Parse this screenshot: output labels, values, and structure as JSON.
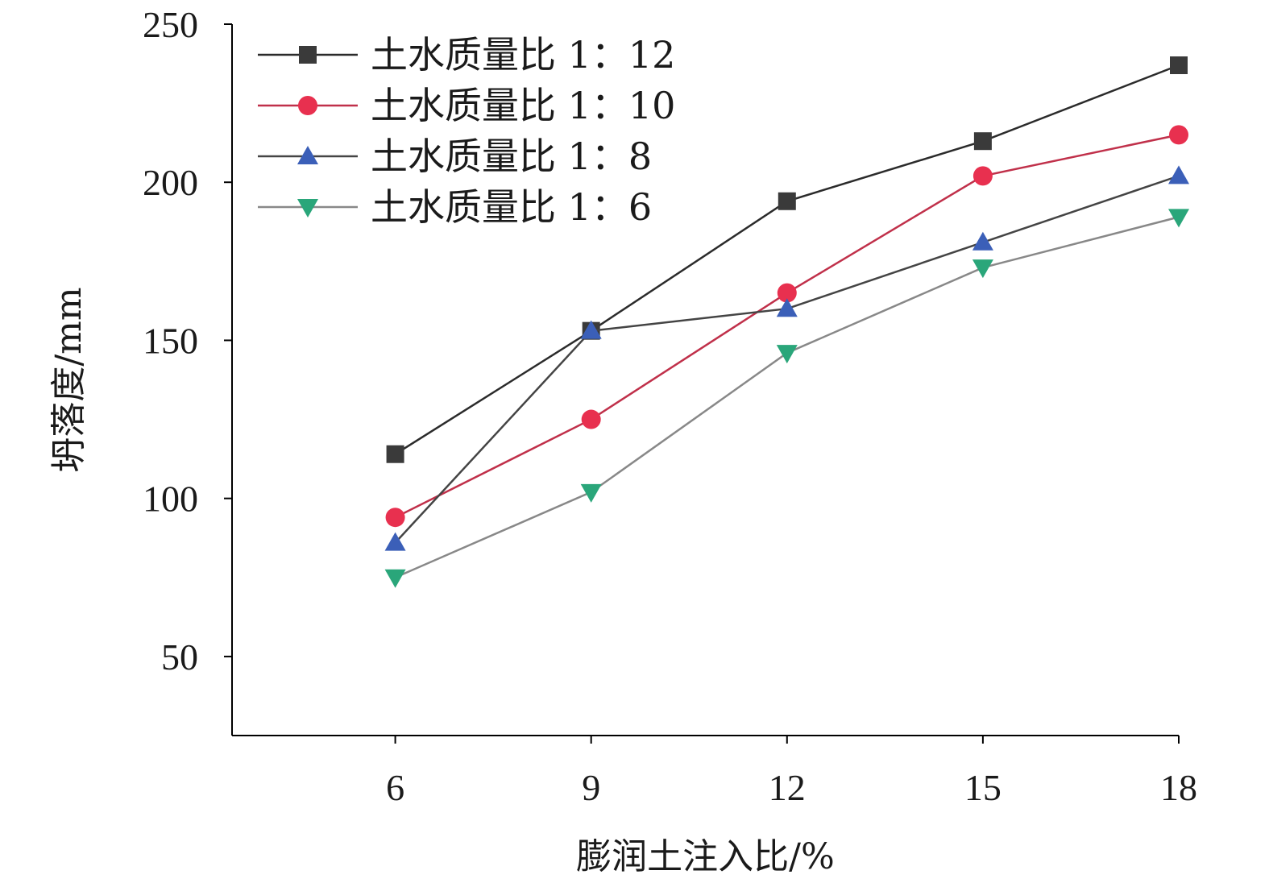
{
  "chart_data": {
    "type": "line",
    "xlabel": "膨润土注入比/%",
    "ylabel": "坍落度/mm",
    "x": [
      6,
      9,
      12,
      15,
      18
    ],
    "x_ticks": [
      "6",
      "9",
      "12",
      "15",
      "18"
    ],
    "y_ticks": [
      "50",
      "100",
      "150",
      "200",
      "250"
    ],
    "xlim": [
      3.5,
      18
    ],
    "ylim": [
      25,
      250
    ],
    "grid": false,
    "legend_position": "top-left",
    "series": [
      {
        "name": "土水质量比 1：12",
        "marker": "square",
        "color": "#3a3a3a",
        "line_color": "#2b2b2b",
        "values": [
          114,
          153,
          194,
          213,
          237
        ]
      },
      {
        "name": "土水质量比 1：10",
        "marker": "circle",
        "color": "#e8304f",
        "line_color": "#c0304a",
        "values": [
          94,
          125,
          165,
          202,
          215
        ]
      },
      {
        "name": "土水质量比 1：8",
        "marker": "triangle-up",
        "color": "#3b5fb8",
        "line_color": "#444444",
        "values": [
          86,
          153,
          160,
          181,
          202
        ]
      },
      {
        "name": "土水质量比 1：6",
        "marker": "triangle-down",
        "color": "#2aa67a",
        "line_color": "#888888",
        "values": [
          75,
          102,
          146,
          173,
          189
        ]
      }
    ]
  }
}
